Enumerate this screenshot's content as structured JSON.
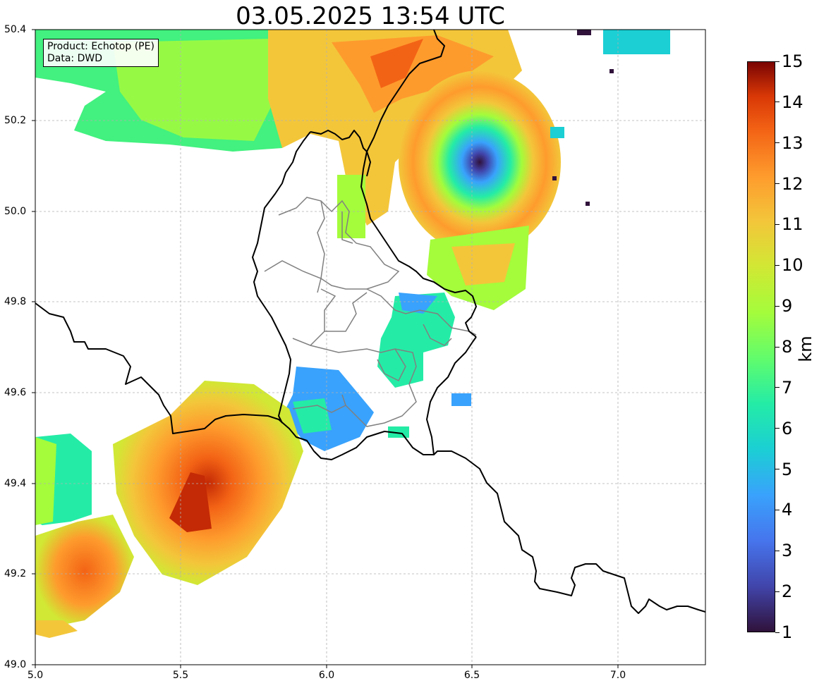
{
  "title": "03.05.2025 13:54 UTC",
  "info": {
    "line1": "Product: Echotop (PE)",
    "line2": "Data: DWD"
  },
  "axes": {
    "x_ticks": [
      "5.0",
      "5.5",
      "6.0",
      "6.5",
      "7.0"
    ],
    "y_ticks": [
      "50.4",
      "50.2",
      "50.0",
      "49.8",
      "49.6",
      "49.4",
      "49.2",
      "49.0"
    ],
    "xlim": [
      5.0,
      7.3
    ],
    "ylim": [
      49.0,
      50.4
    ]
  },
  "colorbar": {
    "label": "km",
    "ticks": [
      "15",
      "14",
      "13",
      "12",
      "11",
      "10",
      "9",
      "8",
      "7",
      "6",
      "5",
      "4",
      "3",
      "2",
      "1"
    ],
    "range": [
      1,
      15
    ],
    "colormap": "turbo",
    "colors": [
      "#30123b",
      "#4145ab",
      "#4675ed",
      "#39a2fc",
      "#1bcfd4",
      "#24eca6",
      "#61fc6c",
      "#a4fc3b",
      "#d1e834",
      "#f3c63a",
      "#fe9b2d",
      "#f36315",
      "#d93806",
      "#7a0403"
    ]
  },
  "map": {
    "grid": true,
    "features": [
      "national borders (black)",
      "regional borders (gray)",
      "radar echotop field"
    ]
  }
}
